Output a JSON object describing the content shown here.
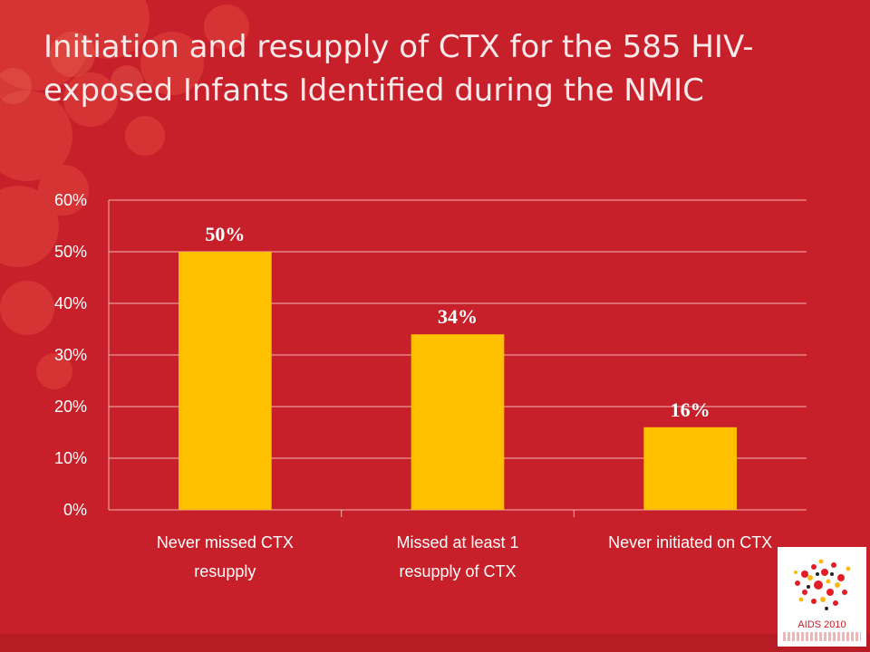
{
  "slide": {
    "title": "Initiation and resupply of CTX for the 585 HIV-exposed  Infants Identified during the NMIC",
    "logo_text": "AIDS 2010"
  },
  "colors": {
    "background": "#C8202A",
    "bar": "#FFC000",
    "text": "#FFFFFF",
    "gridline": "#F3B5B5"
  },
  "chart_data": {
    "type": "bar",
    "categories": [
      "Never missed CTX resupply",
      "Missed at least 1 resupply of CTX",
      "Never initiated on CTX"
    ],
    "category_lines": [
      [
        "Never missed CTX",
        "resupply"
      ],
      [
        "Missed at least 1",
        "resupply of CTX"
      ],
      [
        "Never initiated on CTX"
      ]
    ],
    "values": [
      0.5,
      0.34,
      0.16
    ],
    "data_labels": [
      "50%",
      "34%",
      "16%"
    ],
    "ylim": [
      0,
      0.6
    ],
    "yticks": [
      "0%",
      "10%",
      "20%",
      "30%",
      "40%",
      "50%",
      "60%"
    ],
    "grid": true,
    "legend": "none",
    "title": "",
    "xlabel": "",
    "ylabel": ""
  }
}
